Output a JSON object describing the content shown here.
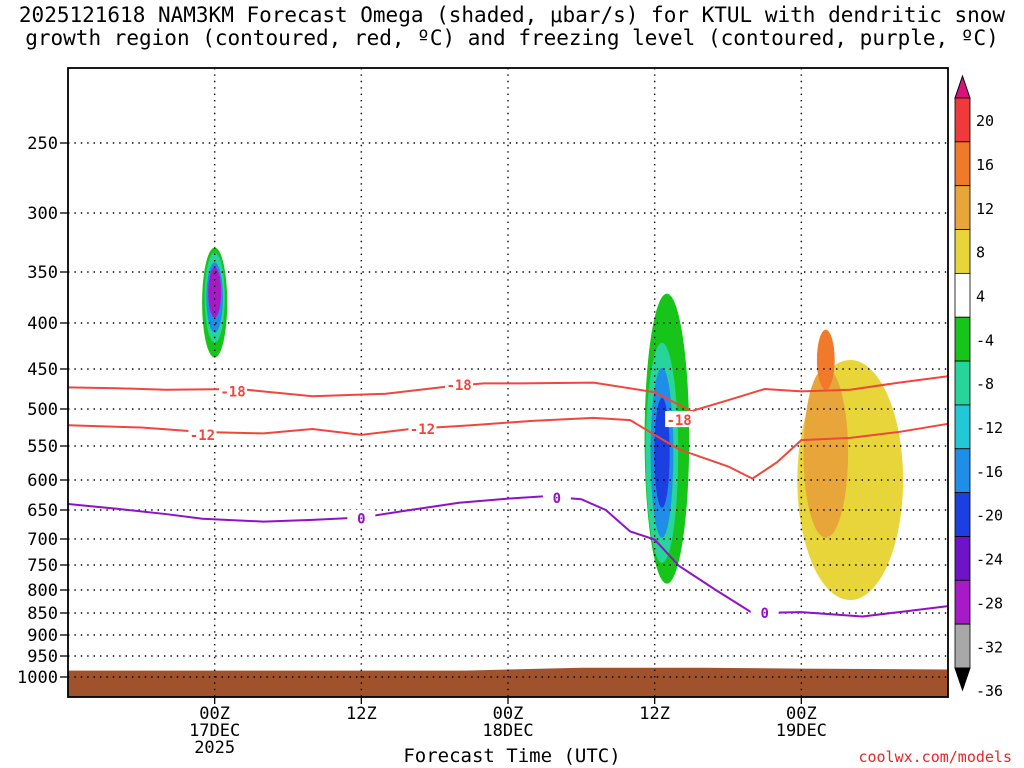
{
  "chart_data": {
    "type": "heatmap",
    "title_line1": "2025121618 NAM3KM Forecast Omega (shaded, μbar/s) for KTUL with dendritic snow",
    "title_line2": "growth region (contoured, red, ºC) and freezing level (contoured, purple, ºC)",
    "xlabel": "Forecast Time (UTC)",
    "credit": "coolwx.com/models",
    "x_range_hours": [
      -12,
      60
    ],
    "x_ticks": [
      {
        "hour": 0,
        "label": "00Z",
        "sub": "17DEC",
        "sub2": "2025"
      },
      {
        "hour": 12,
        "label": "12Z",
        "sub": "",
        "sub2": ""
      },
      {
        "hour": 24,
        "label": "00Z",
        "sub": "18DEC",
        "sub2": ""
      },
      {
        "hour": 36,
        "label": "12Z",
        "sub": "",
        "sub2": ""
      },
      {
        "hour": 48,
        "label": "00Z",
        "sub": "19DEC",
        "sub2": ""
      }
    ],
    "y_ticks": [
      "250",
      "300",
      "350",
      "400",
      "450",
      "500",
      "550",
      "600",
      "650",
      "700",
      "750",
      "800",
      "850",
      "900",
      "950",
      "1000"
    ],
    "colorbar": {
      "labels": [
        "20",
        "16",
        "12",
        "8",
        "4",
        "-4",
        "-8",
        "-12",
        "-16",
        "-20",
        "-24",
        "-28",
        "-32",
        "-36"
      ],
      "colors": [
        "#d9127b",
        "#f0393b",
        "#f07a2a",
        "#e8a63a",
        "#e8d53a",
        "#ffffff",
        "#16c41a",
        "#27d49a",
        "#22c8d6",
        "#1f8ee8",
        "#1b3fe0",
        "#6e13c8",
        "#a81ac8",
        "#a8a8a8",
        "#000000"
      ]
    },
    "contours": [
      {
        "name": "-18",
        "color": "#f0463b",
        "points": [
          [
            -12,
            473
          ],
          [
            -8,
            474
          ],
          [
            -4,
            476
          ],
          [
            2,
            475
          ],
          [
            8,
            484
          ],
          [
            14,
            481
          ],
          [
            19,
            472
          ],
          [
            22,
            468
          ],
          [
            25,
            468
          ],
          [
            31,
            467
          ],
          [
            36,
            479
          ],
          [
            39,
            503
          ],
          [
            42,
            489
          ],
          [
            45,
            475
          ],
          [
            48,
            478
          ],
          [
            52,
            476
          ],
          [
            56,
            467
          ],
          [
            60,
            459
          ]
        ]
      },
      {
        "name": "-12",
        "color": "#f0463b",
        "points": [
          [
            -12,
            522
          ],
          [
            -6,
            525
          ],
          [
            -1,
            531
          ],
          [
            4,
            533
          ],
          [
            8,
            527
          ],
          [
            12,
            535
          ],
          [
            16,
            527
          ],
          [
            21,
            522
          ],
          [
            26,
            516
          ],
          [
            31,
            512
          ],
          [
            34,
            515
          ],
          [
            36,
            535
          ],
          [
            38,
            555
          ],
          [
            42,
            580
          ],
          [
            44,
            598
          ],
          [
            46,
            574
          ],
          [
            48,
            542
          ],
          [
            52,
            539
          ],
          [
            56,
            531
          ],
          [
            60,
            520
          ]
        ]
      },
      {
        "name": "0",
        "color": "#9012c8",
        "points": [
          [
            -12,
            640
          ],
          [
            -8,
            648
          ],
          [
            -4,
            657
          ],
          [
            -1,
            665
          ],
          [
            4,
            670
          ],
          [
            8,
            667
          ],
          [
            12,
            663
          ],
          [
            16,
            650
          ],
          [
            20,
            638
          ],
          [
            24,
            631
          ],
          [
            27,
            627
          ],
          [
            30,
            632
          ],
          [
            32,
            650
          ],
          [
            34,
            687
          ],
          [
            36,
            701
          ],
          [
            38,
            752
          ],
          [
            41,
            800
          ],
          [
            44,
            850
          ],
          [
            48,
            848
          ],
          [
            50,
            852
          ],
          [
            53,
            858
          ],
          [
            56,
            848
          ],
          [
            60,
            835
          ]
        ]
      }
    ],
    "series_labels": [
      {
        "text": "-18",
        "hour": 1.5,
        "hpa": 478,
        "color": "#f0463b"
      },
      {
        "text": "-18",
        "hour": 20.0,
        "hpa": 470,
        "color": "#f0463b"
      },
      {
        "text": "-18",
        "hour": 38.0,
        "hpa": 515,
        "color": "#f0463b"
      },
      {
        "text": "-12",
        "hour": -1.0,
        "hpa": 535,
        "color": "#f0463b"
      },
      {
        "text": "-12",
        "hour": 17.0,
        "hpa": 527,
        "color": "#f0463b"
      },
      {
        "text": "0",
        "hour": 12.0,
        "hpa": 665,
        "color": "#9012c8"
      },
      {
        "text": "0",
        "hour": 28.0,
        "hpa": 630,
        "color": "#9012c8"
      },
      {
        "text": "0",
        "hour": 45.0,
        "hpa": 850,
        "color": "#9012c8"
      }
    ],
    "shaded_regions": [
      {
        "name": "omega-min-17dec",
        "color": "#16c41a",
        "hour": 0,
        "hpa": 380,
        "w": 1.4,
        "h": 110
      },
      {
        "name": "omega-min-17dec-core1",
        "color": "#27d49a",
        "hour": 0,
        "hpa": 375,
        "w": 1.0,
        "h": 90
      },
      {
        "name": "omega-min-17dec-core2",
        "color": "#1f8ee8",
        "hour": 0,
        "hpa": 375,
        "w": 0.7,
        "h": 70
      },
      {
        "name": "omega-min-17dec-core3",
        "color": "#a81ac8",
        "hour": 0,
        "hpa": 370,
        "w": 0.4,
        "h": 50
      },
      {
        "name": "omega-min-12z18",
        "color": "#16c41a",
        "hour": 37,
        "hpa": 540,
        "w": 3.0,
        "h": 290
      },
      {
        "name": "omega-min-12z18-core1",
        "color": "#27d49a",
        "hour": 36.6,
        "hpa": 560,
        "w": 2.0,
        "h": 220
      },
      {
        "name": "omega-min-12z18-core2",
        "color": "#1f8ee8",
        "hour": 36.6,
        "hpa": 560,
        "w": 1.2,
        "h": 170
      },
      {
        "name": "omega-min-12z18-core3",
        "color": "#1b3fe0",
        "hour": 36.6,
        "hpa": 560,
        "w": 0.6,
        "h": 110
      },
      {
        "name": "omega-max-19dec",
        "color": "#e8d53a",
        "hour": 52,
        "hpa": 600,
        "w": 8.0,
        "h": 240
      },
      {
        "name": "omega-max-19dec-core1",
        "color": "#e8a63a",
        "hour": 50,
        "hpa": 560,
        "w": 3.0,
        "h": 170
      },
      {
        "name": "omega-max-19dec-core2",
        "color": "#f07a2a",
        "hour": 50,
        "hpa": 440,
        "w": 0.8,
        "h": 60
      }
    ],
    "terrain_color": "#a0522d"
  }
}
